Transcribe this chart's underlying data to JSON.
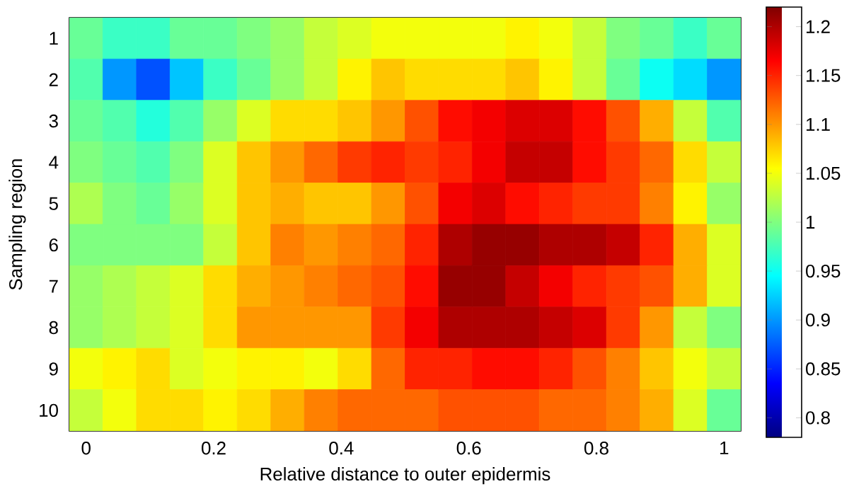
{
  "chart_data": {
    "type": "heatmap",
    "xlabel": "Relative distance to outer epidermis",
    "ylabel": "Sampling region",
    "x": [
      0,
      0.0526,
      0.1053,
      0.1579,
      0.2105,
      0.2632,
      0.3158,
      0.3684,
      0.4211,
      0.4737,
      0.5263,
      0.5789,
      0.6316,
      0.6842,
      0.7368,
      0.7895,
      0.8421,
      0.8947,
      0.9474,
      1
    ],
    "xlim": [
      -0.0263,
      1.0263
    ],
    "xticks": [
      0,
      0.2,
      0.4,
      0.6,
      0.8,
      1
    ],
    "y_categories": [
      "1",
      "2",
      "3",
      "4",
      "5",
      "6",
      "7",
      "8",
      "9",
      "10"
    ],
    "cells": [
      [
        0.99,
        0.97,
        0.97,
        0.99,
        0.99,
        1.0,
        1.01,
        1.03,
        1.04,
        1.05,
        1.05,
        1.05,
        1.05,
        1.06,
        1.05,
        1.03,
        1.0,
        0.99,
        0.97,
        0.99
      ],
      [
        0.98,
        0.9,
        0.87,
        0.92,
        0.97,
        0.99,
        1.01,
        1.03,
        1.06,
        1.08,
        1.07,
        1.07,
        1.07,
        1.08,
        1.06,
        1.03,
        0.99,
        0.95,
        0.93,
        0.9
      ],
      [
        0.99,
        0.98,
        0.96,
        0.98,
        1.01,
        1.04,
        1.07,
        1.07,
        1.08,
        1.1,
        1.13,
        1.16,
        1.17,
        1.18,
        1.18,
        1.16,
        1.13,
        1.09,
        1.03,
        0.98
      ],
      [
        1.0,
        0.99,
        0.98,
        1.0,
        1.04,
        1.08,
        1.1,
        1.12,
        1.14,
        1.15,
        1.14,
        1.15,
        1.17,
        1.19,
        1.19,
        1.16,
        1.14,
        1.12,
        1.07,
        1.03
      ],
      [
        1.02,
        1.0,
        0.99,
        1.01,
        1.04,
        1.08,
        1.09,
        1.08,
        1.08,
        1.1,
        1.13,
        1.17,
        1.18,
        1.16,
        1.15,
        1.14,
        1.14,
        1.11,
        1.06,
        1.01
      ],
      [
        1.0,
        1.0,
        1.0,
        1.0,
        1.03,
        1.08,
        1.11,
        1.1,
        1.11,
        1.12,
        1.15,
        1.2,
        1.21,
        1.21,
        1.2,
        1.2,
        1.19,
        1.15,
        1.09,
        1.04
      ],
      [
        1.01,
        1.02,
        1.03,
        1.04,
        1.07,
        1.09,
        1.1,
        1.11,
        1.12,
        1.13,
        1.16,
        1.21,
        1.21,
        1.19,
        1.17,
        1.15,
        1.14,
        1.13,
        1.09,
        1.04
      ],
      [
        1.01,
        1.02,
        1.03,
        1.04,
        1.07,
        1.1,
        1.1,
        1.1,
        1.1,
        1.14,
        1.17,
        1.2,
        1.2,
        1.2,
        1.19,
        1.18,
        1.14,
        1.1,
        1.03,
        1.0
      ],
      [
        1.05,
        1.06,
        1.07,
        1.04,
        1.05,
        1.06,
        1.06,
        1.05,
        1.07,
        1.12,
        1.15,
        1.15,
        1.16,
        1.16,
        1.15,
        1.13,
        1.11,
        1.08,
        1.05,
        1.03
      ],
      [
        1.03,
        1.05,
        1.07,
        1.07,
        1.06,
        1.07,
        1.09,
        1.11,
        1.12,
        1.12,
        1.12,
        1.13,
        1.13,
        1.13,
        1.12,
        1.12,
        1.11,
        1.09,
        1.04,
        0.99
      ]
    ],
    "clim": [
      0.78,
      1.22
    ],
    "cticks": [
      0.8,
      0.85,
      0.9,
      0.95,
      1,
      1.05,
      1.1,
      1.15,
      1.2
    ]
  }
}
